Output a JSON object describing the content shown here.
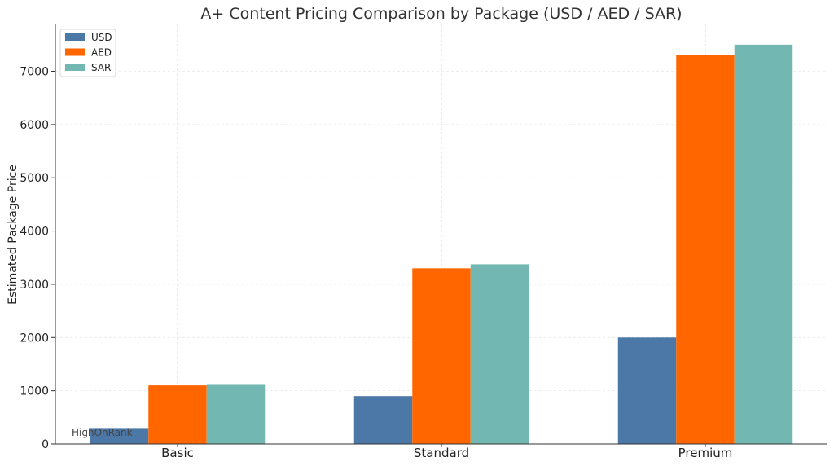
{
  "chart_data": {
    "type": "bar",
    "title": "A+ Content Pricing Comparison by Package (USD / AED / SAR)",
    "xlabel": "",
    "ylabel": "Estimated Package Price",
    "categories": [
      "Basic",
      "Standard",
      "Premium"
    ],
    "series": [
      {
        "name": "USD",
        "values": [
          300,
          900,
          2000
        ],
        "color": "#4c78a8"
      },
      {
        "name": "AED",
        "values": [
          1100,
          3300,
          7300
        ],
        "color": "#ff6600"
      },
      {
        "name": "SAR",
        "values": [
          1125,
          3375,
          7500
        ],
        "color": "#72b7b2"
      }
    ],
    "ylim": [
      0,
      7880
    ],
    "yticks": [
      "0",
      "1000",
      "2000",
      "3000",
      "4000",
      "5000",
      "6000",
      "7000"
    ],
    "grid": true,
    "legend_position": "top-left",
    "watermark": "HighOnRank"
  }
}
